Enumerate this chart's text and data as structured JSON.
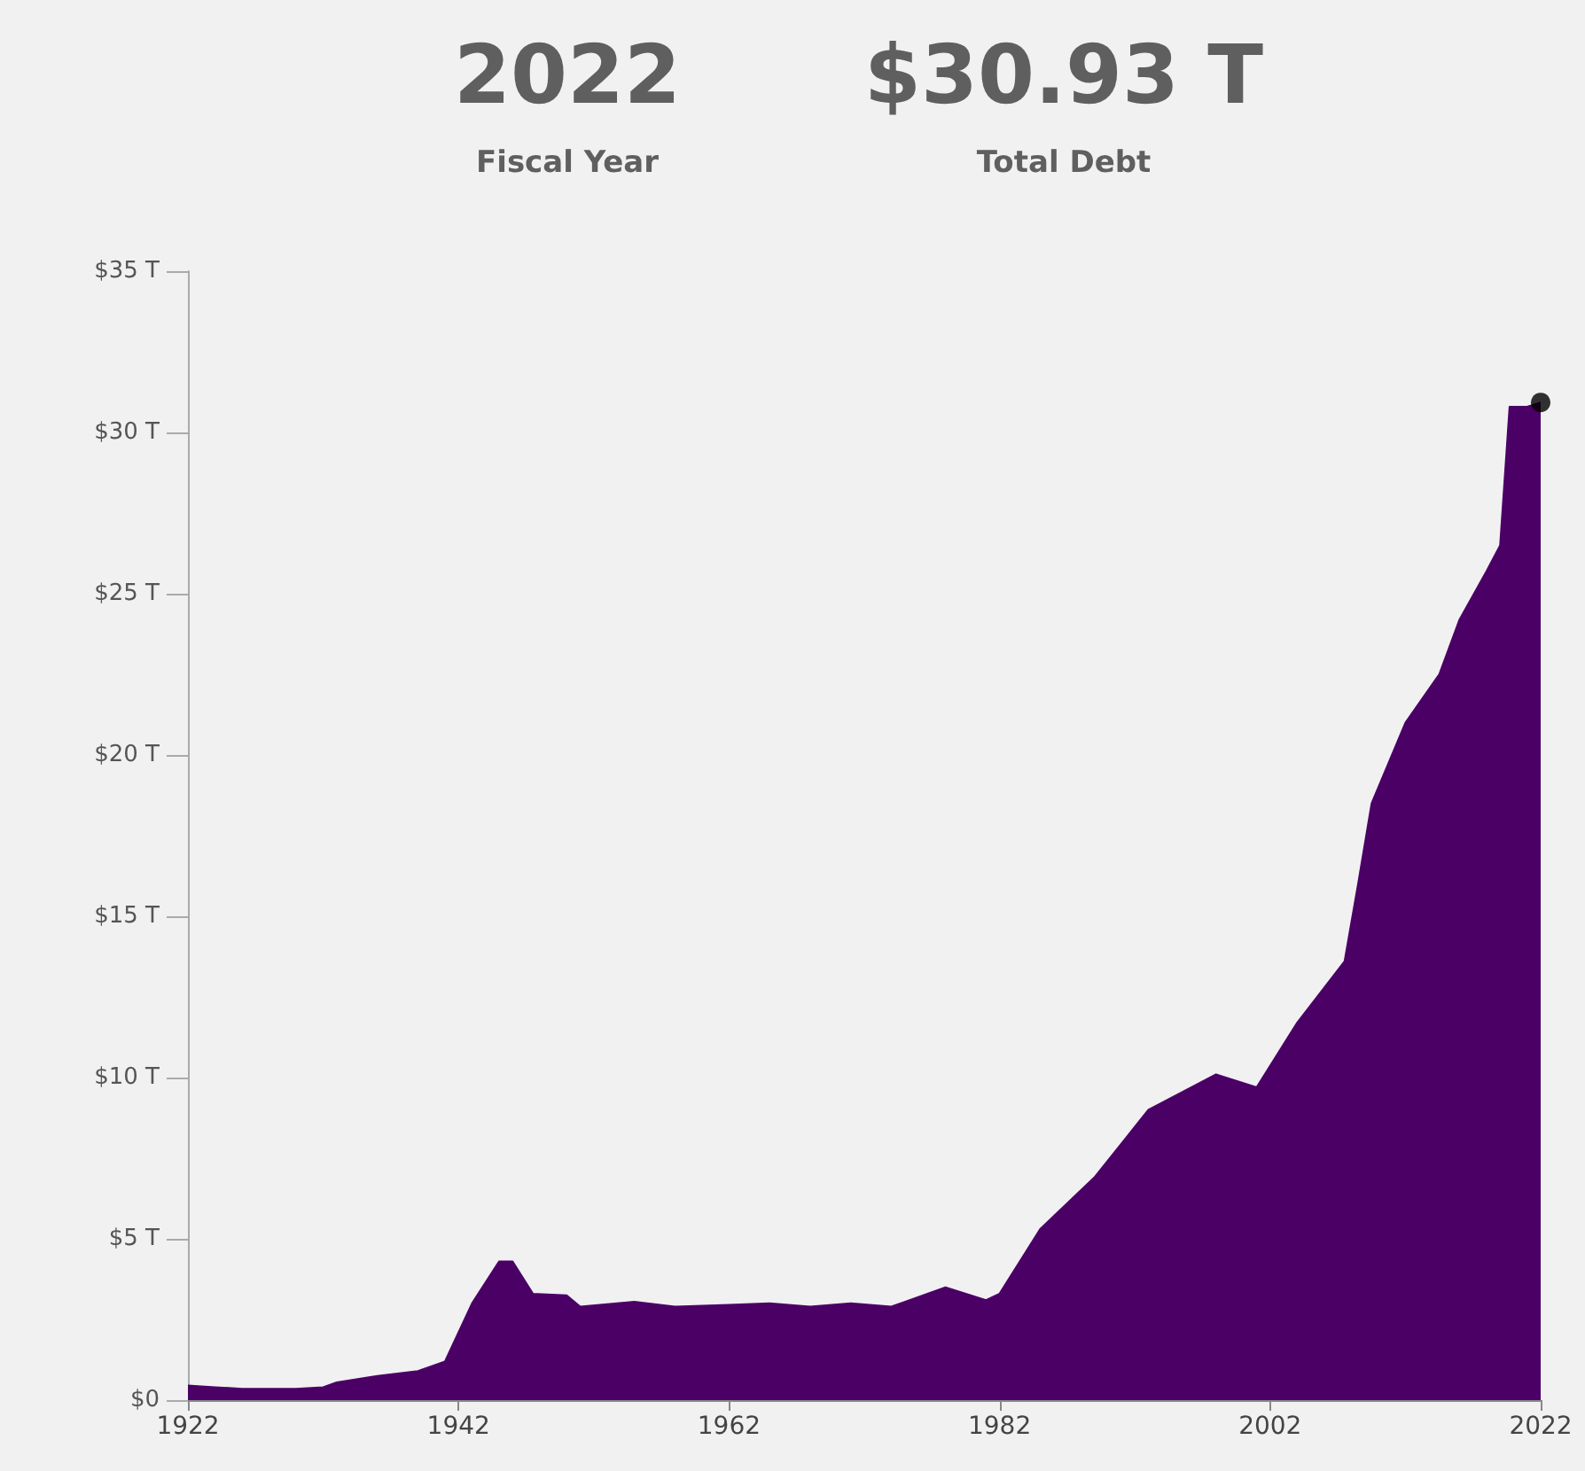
{
  "chart_data": {
    "type": "area",
    "annotations": [
      "2022",
      "Fiscal Year",
      "$30.93 T",
      "Total Debt"
    ],
    "x": [
      1922,
      1924,
      1926,
      1930,
      1932,
      1933,
      1936,
      1939,
      1941,
      1943,
      1945,
      1946,
      1947.5,
      1950,
      1951,
      1955,
      1958,
      1962,
      1965,
      1968,
      1971,
      1974,
      1978,
      1981,
      1982,
      1985,
      1989,
      1993,
      1998,
      2001,
      2004,
      2007.5,
      2008.5,
      2009.5,
      2012,
      2014.5,
      2016,
      2018,
      2019,
      2019.7,
      2021,
      2022
    ],
    "series": [
      {
        "color": "#4b0066",
        "values": [
          0.45,
          0.4,
          0.35,
          0.35,
          0.4,
          0.55,
          0.75,
          0.9,
          1.2,
          3.0,
          4.3,
          4.3,
          3.3,
          3.25,
          2.9,
          3.05,
          2.9,
          2.95,
          3.0,
          2.9,
          3.0,
          2.9,
          3.5,
          3.1,
          3.3,
          5.3,
          6.9,
          9.0,
          10.1,
          9.7,
          11.7,
          13.6,
          16,
          18.5,
          21.0,
          22.5,
          24.2,
          25.7,
          26.5,
          30.8,
          30.8,
          30.93
        ]
      },
      {
        "type": "scatter",
        "color": "#000000",
        "x": [
          2022
        ],
        "values": [
          30.93
        ]
      }
    ],
    "xlim": [
      1922,
      2022
    ],
    "xticks": [
      1922,
      1942,
      1962,
      1982,
      2002,
      2022
    ],
    "ylim": [
      0,
      35
    ],
    "yticks": [
      {
        "value": 0,
        "label": "$0"
      },
      {
        "value": 5,
        "label": "$5 T"
      },
      {
        "value": 10,
        "label": "$10 T"
      },
      {
        "value": 15,
        "label": "$15 T"
      },
      {
        "value": 20,
        "label": "$20 T"
      },
      {
        "value": 25,
        "label": "$25 T"
      },
      {
        "value": 30,
        "label": "$30 T"
      },
      {
        "value": 35,
        "label": "$35 T"
      }
    ]
  }
}
